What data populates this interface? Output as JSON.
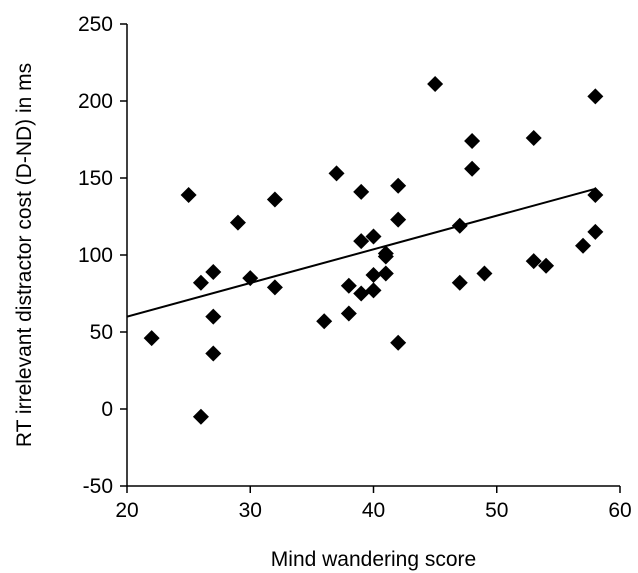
{
  "chart_data": {
    "type": "scatter",
    "title": "",
    "xlabel": "Mind wandering score",
    "ylabel": "RT irrelevant distractor cost (D-ND) in ms",
    "xlim": [
      20,
      60
    ],
    "ylim": [
      -50,
      250
    ],
    "xticks": [
      "20",
      "30",
      "40",
      "50",
      "60"
    ],
    "yticks": [
      "-50",
      "0",
      "50",
      "100",
      "150",
      "200",
      "250"
    ],
    "grid": false,
    "legend": "none",
    "marker": "diamond",
    "color": "#000000",
    "points": [
      {
        "x": 22,
        "y": 46
      },
      {
        "x": 25,
        "y": 139
      },
      {
        "x": 26,
        "y": 82
      },
      {
        "x": 26,
        "y": -5
      },
      {
        "x": 27,
        "y": 89
      },
      {
        "x": 27,
        "y": 60
      },
      {
        "x": 27,
        "y": 36
      },
      {
        "x": 29,
        "y": 121
      },
      {
        "x": 30,
        "y": 85
      },
      {
        "x": 32,
        "y": 136
      },
      {
        "x": 32,
        "y": 79
      },
      {
        "x": 36,
        "y": 57
      },
      {
        "x": 37,
        "y": 153
      },
      {
        "x": 38,
        "y": 80
      },
      {
        "x": 38,
        "y": 62
      },
      {
        "x": 39,
        "y": 141
      },
      {
        "x": 39,
        "y": 109
      },
      {
        "x": 39,
        "y": 75
      },
      {
        "x": 40,
        "y": 112
      },
      {
        "x": 40,
        "y": 87
      },
      {
        "x": 40,
        "y": 77
      },
      {
        "x": 41,
        "y": 101
      },
      {
        "x": 41,
        "y": 99
      },
      {
        "x": 41,
        "y": 88
      },
      {
        "x": 42,
        "y": 145
      },
      {
        "x": 42,
        "y": 123
      },
      {
        "x": 42,
        "y": 43
      },
      {
        "x": 45,
        "y": 211
      },
      {
        "x": 47,
        "y": 119
      },
      {
        "x": 47,
        "y": 82
      },
      {
        "x": 48,
        "y": 174
      },
      {
        "x": 48,
        "y": 156
      },
      {
        "x": 49,
        "y": 88
      },
      {
        "x": 53,
        "y": 176
      },
      {
        "x": 53,
        "y": 96
      },
      {
        "x": 54,
        "y": 93
      },
      {
        "x": 57,
        "y": 106
      },
      {
        "x": 58,
        "y": 203
      },
      {
        "x": 58,
        "y": 139
      },
      {
        "x": 58,
        "y": 115
      }
    ],
    "trendline": {
      "x": [
        20,
        58
      ],
      "y": [
        60,
        143
      ]
    }
  }
}
